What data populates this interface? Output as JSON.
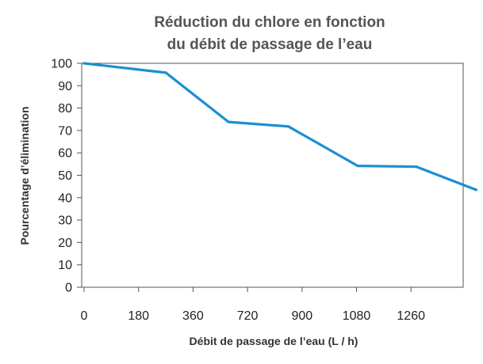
{
  "chart_data": {
    "type": "line",
    "title_lines": [
      "Réduction du chlore en fonction",
      "du débit de passage de l’eau"
    ],
    "xlabel": "Débit de passage de l’eau (L / h)",
    "ylabel": "Pourcentage d’élimination",
    "x_tick_labels": [
      "0",
      "180",
      "360",
      "720",
      "900",
      "1080",
      "1260"
    ],
    "y_ticks": [
      0,
      10,
      20,
      30,
      40,
      50,
      60,
      70,
      80,
      90,
      100
    ],
    "ylim": [
      0,
      100
    ],
    "grid": false,
    "series": [
      {
        "color": "#1a8fd1",
        "points": [
          {
            "x": 0,
            "y": 100
          },
          {
            "x": 270,
            "y": 95.8
          },
          {
            "x": 477,
            "y": 73.8
          },
          {
            "x": 675,
            "y": 71.8
          },
          {
            "x": 904,
            "y": 54.2
          },
          {
            "x": 1098,
            "y": 53.8
          },
          {
            "x": 1295,
            "y": 43.5
          }
        ]
      }
    ]
  }
}
